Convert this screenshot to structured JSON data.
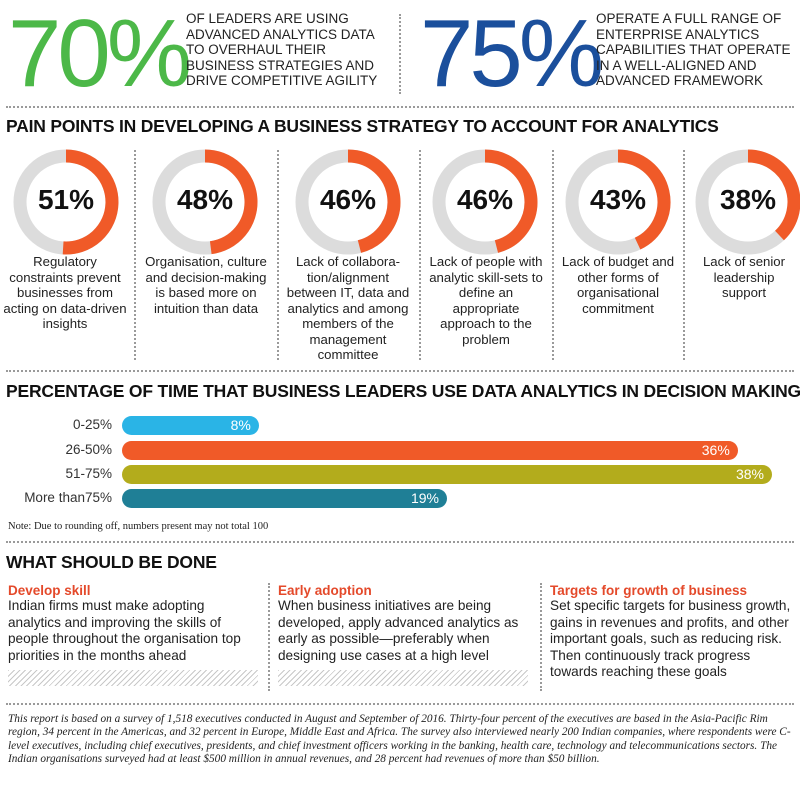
{
  "header": {
    "stat1": {
      "value": "70%",
      "text": "OF LEADERS ARE USING ADVANCED ANALYTICS DATA TO OVERHAUL THEIR BUSINESS STRATEGIES AND DRIVE COMPETITIVE AGILITY",
      "color": "#4cb848"
    },
    "stat2": {
      "value": "75%",
      "text": "OPERATE A FULL RANGE OF ENTERPRISE ANALYTICS CAPABILITIES THAT OPERATE IN A WELL-ALIGNED AND ADVANCED FRAMEWORK",
      "color": "#1b4f9c"
    }
  },
  "pain_points": {
    "title": "PAIN POINTS IN DEVELOPING A BUSINESS STRATEGY TO ACCOUNT FOR ANALYTICS",
    "accent_color": "#f05a28",
    "track_color": "#dcdcdc",
    "items": [
      {
        "value": "51%",
        "caption": "Regulatory constraints prevent businesses from acting on data-driven insights"
      },
      {
        "value": "48%",
        "caption": "Organisation, culture and decision-making is based more on intuition than data"
      },
      {
        "value": "46%",
        "caption": "Lack of collabora-tion/alignment between IT, data and analytics and among members of the management committee"
      },
      {
        "value": "46%",
        "caption": "Lack of people with analytic skill-sets to define an appropriate approach to the problem"
      },
      {
        "value": "43%",
        "caption": "Lack of budget and other forms of organisational commitment"
      },
      {
        "value": "38%",
        "caption": "Lack of senior leadership support"
      }
    ]
  },
  "chart_data": {
    "type": "bar",
    "orientation": "horizontal",
    "title": "PERCENTAGE OF TIME THAT BUSINESS LEADERS USE DATA ANALYTICS IN DECISION MAKING",
    "categories": [
      "0-25%",
      "26-50%",
      "51-75%",
      "More than75%"
    ],
    "values": [
      8,
      36,
      38,
      19
    ],
    "value_labels": [
      "8%",
      "36%",
      "38%",
      "19%"
    ],
    "colors": [
      "#2ab4e6",
      "#f05a28",
      "#b3ac1c",
      "#1f7f96"
    ],
    "xlim": [
      0,
      38
    ],
    "note": "Note: Due to rounding off, numbers present may not total 100"
  },
  "actions": {
    "title": "WHAT SHOULD BE DONE",
    "columns": [
      {
        "heading": "Develop skill",
        "body": "Indian firms must make adopting analytics and improving the skills of people throughout the organisation top priorities in the months ahead"
      },
      {
        "heading": "Early adoption",
        "body": "When business initiatives are being developed, apply advanced analytics as early as possible—preferably when designing use cases at a high level"
      },
      {
        "heading": "Targets for growth of business",
        "body": "Set specific targets for business growth, gains in revenues and profits, and other important goals, such as reducing risk. Then continuously track progress towards reaching these goals"
      }
    ]
  },
  "footer": {
    "text": "This report is based on a survey of 1,518 executives conducted in August and September of 2016. Thirty-four percent of the executives are based in the Asia-Pacific Rim region, 34 percent in the Americas, and 32 percent in Europe, Middle East and Africa. The survey also interviewed nearly 200 Indian companies, where respondents were C-level executives, including chief executives, presidents, and chief investment officers working in the banking, health care, technology and telecommunications sectors. The Indian organisations surveyed had at least $500 million in annual revenues, and 28 percent had revenues of more than $50 billion."
  }
}
